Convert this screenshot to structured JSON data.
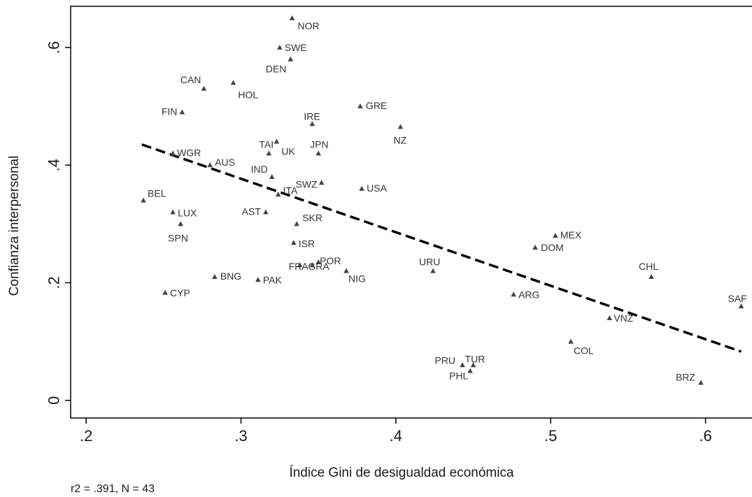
{
  "chart_data": {
    "type": "scatter",
    "xlabel": "Índice Gini de desigualdad económica",
    "ylabel": "Confianza interpersonal",
    "note": "r2 = .391, N = 43",
    "xlim": [
      0.19,
      0.63
    ],
    "ylim": [
      -0.03,
      0.67
    ],
    "x_ticks": [
      0.2,
      0.3,
      0.4,
      0.5,
      0.6
    ],
    "x_tick_labels": [
      ".2",
      ".3",
      ".4",
      ".5",
      ".6"
    ],
    "y_ticks": [
      0,
      0.2,
      0.4,
      0.6
    ],
    "y_tick_labels": [
      "0",
      ".2",
      ".4",
      ".6"
    ],
    "grid": false,
    "trend_line": {
      "style": "dashed",
      "x": [
        0.236,
        0.623
      ],
      "y": [
        0.435,
        0.083
      ]
    },
    "points": [
      {
        "label": "NOR",
        "x": 0.333,
        "y": 0.65
      },
      {
        "label": "SWE",
        "x": 0.325,
        "y": 0.6
      },
      {
        "label": "DEN",
        "x": 0.332,
        "y": 0.58
      },
      {
        "label": "CAN",
        "x": 0.276,
        "y": 0.53
      },
      {
        "label": "HOL",
        "x": 0.295,
        "y": 0.54
      },
      {
        "label": "FIN",
        "x": 0.262,
        "y": 0.49
      },
      {
        "label": "GRE",
        "x": 0.377,
        "y": 0.5
      },
      {
        "label": "IRE",
        "x": 0.346,
        "y": 0.47
      },
      {
        "label": "NZ",
        "x": 0.403,
        "y": 0.465
      },
      {
        "label": "TAI",
        "x": 0.318,
        "y": 0.42
      },
      {
        "label": "UK",
        "x": 0.323,
        "y": 0.44
      },
      {
        "label": "JPN",
        "x": 0.35,
        "y": 0.42
      },
      {
        "label": "WGR",
        "x": 0.256,
        "y": 0.42
      },
      {
        "label": "AUS",
        "x": 0.28,
        "y": 0.4
      },
      {
        "label": "IND",
        "x": 0.32,
        "y": 0.38
      },
      {
        "label": "SWZ",
        "x": 0.352,
        "y": 0.37
      },
      {
        "label": "USA",
        "x": 0.378,
        "y": 0.36
      },
      {
        "label": "BEL",
        "x": 0.237,
        "y": 0.34
      },
      {
        "label": "AST",
        "x": 0.316,
        "y": 0.32
      },
      {
        "label": "ITA",
        "x": 0.324,
        "y": 0.35
      },
      {
        "label": "LUX",
        "x": 0.256,
        "y": 0.32
      },
      {
        "label": "SPN",
        "x": 0.261,
        "y": 0.3
      },
      {
        "label": "SKR",
        "x": 0.336,
        "y": 0.3
      },
      {
        "label": "ISR",
        "x": 0.334,
        "y": 0.268
      },
      {
        "label": "POR",
        "x": 0.35,
        "y": 0.235
      },
      {
        "label": "FRA",
        "x": 0.338,
        "y": 0.23
      },
      {
        "label": "GRA",
        "x": 0.346,
        "y": 0.23
      },
      {
        "label": "URU",
        "x": 0.424,
        "y": 0.22
      },
      {
        "label": "NIG",
        "x": 0.368,
        "y": 0.22
      },
      {
        "label": "BNG",
        "x": 0.283,
        "y": 0.21
      },
      {
        "label": "PAK",
        "x": 0.311,
        "y": 0.205
      },
      {
        "label": "MEX",
        "x": 0.503,
        "y": 0.28
      },
      {
        "label": "DOM",
        "x": 0.49,
        "y": 0.26
      },
      {
        "label": "CHL",
        "x": 0.565,
        "y": 0.21
      },
      {
        "label": "CYP",
        "x": 0.251,
        "y": 0.183
      },
      {
        "label": "ARG",
        "x": 0.476,
        "y": 0.18
      },
      {
        "label": "SAF",
        "x": 0.623,
        "y": 0.16
      },
      {
        "label": "VNZ",
        "x": 0.538,
        "y": 0.14
      },
      {
        "label": "COL",
        "x": 0.513,
        "y": 0.1
      },
      {
        "label": "TUR",
        "x": 0.45,
        "y": 0.06
      },
      {
        "label": "PRU",
        "x": 0.443,
        "y": 0.06
      },
      {
        "label": "PHL",
        "x": 0.448,
        "y": 0.05
      },
      {
        "label": "BRZ",
        "x": 0.597,
        "y": 0.03
      }
    ]
  }
}
